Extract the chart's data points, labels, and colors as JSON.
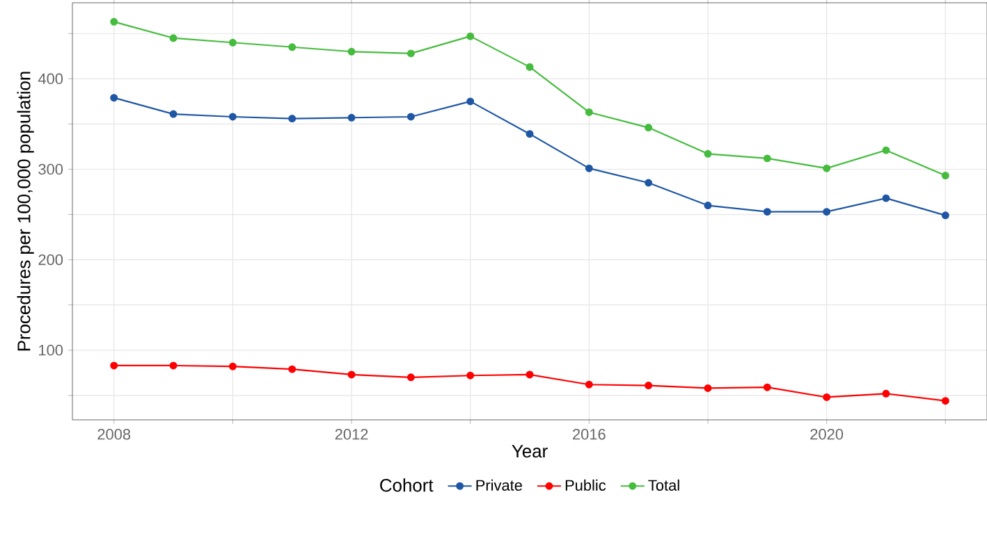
{
  "chart_data": {
    "type": "line",
    "xlabel": "Year",
    "ylabel": "Procedures per 100,000 population",
    "legend_title": "Cohort",
    "x": [
      2008,
      2009,
      2010,
      2011,
      2012,
      2013,
      2014,
      2015,
      2016,
      2017,
      2018,
      2019,
      2020,
      2021,
      2022
    ],
    "series": [
      {
        "name": "Private",
        "color": "#1f57a4",
        "values": [
          379,
          361,
          358,
          356,
          357,
          358,
          375,
          339,
          301,
          285,
          260,
          253,
          253,
          268,
          249
        ]
      },
      {
        "name": "Public",
        "color": "#ff0000",
        "values": [
          83,
          83,
          82,
          79,
          73,
          70,
          72,
          73,
          62,
          61,
          58,
          59,
          48,
          52,
          44
        ]
      },
      {
        "name": "Total",
        "color": "#45bc3e",
        "values": [
          463,
          445,
          440,
          435,
          430,
          428,
          447,
          413,
          363,
          346,
          317,
          312,
          301,
          321,
          293
        ]
      }
    ],
    "xlim": [
      2007.3,
      2022.7
    ],
    "ylim": [
      23,
      484
    ],
    "xticks": [
      2008,
      {
        "value": 2010,
        "label": null
      },
      2012,
      {
        "value": 2014,
        "label": null
      },
      2016,
      {
        "value": 2018,
        "label": null
      },
      2020,
      {
        "value": 2022,
        "label": null
      }
    ],
    "yticks": [
      {
        "value": 50,
        "label": null
      },
      100,
      {
        "value": 150,
        "label": null
      },
      200,
      {
        "value": 250,
        "label": null
      },
      300,
      {
        "value": 350,
        "label": null
      },
      400,
      {
        "value": 450,
        "label": null
      }
    ],
    "grid": true,
    "legend": "bottom",
    "marker": "circle",
    "line_style": "solid"
  }
}
